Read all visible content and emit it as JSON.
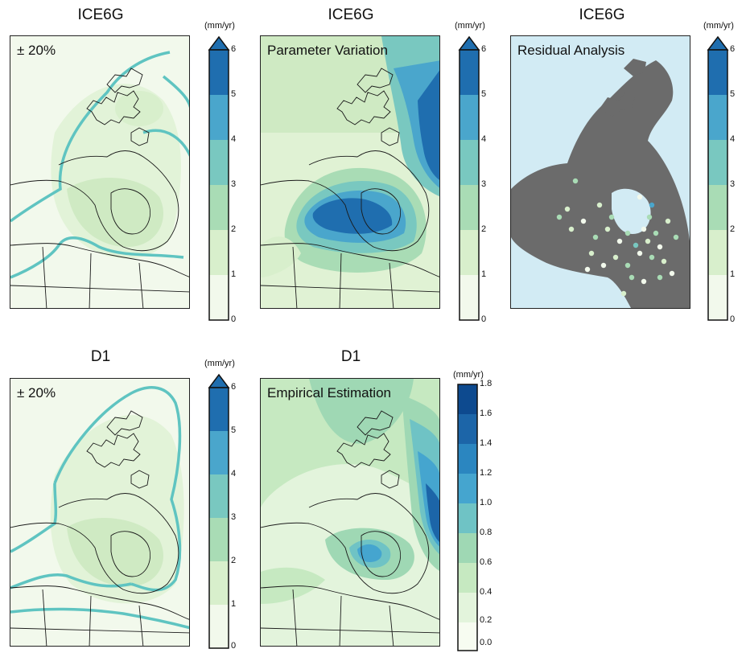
{
  "colors": {
    "ramp6": [
      "#f2f9ec",
      "#d8efcc",
      "#a9dcb5",
      "#79c8c0",
      "#4aa6cc",
      "#1f6eaf"
    ],
    "ramp9": [
      "#f7fcf1",
      "#e3f4dc",
      "#c6e9c1",
      "#9fd8b4",
      "#6fc3c5",
      "#45a5cf",
      "#2b86c0",
      "#1c65a8",
      "#0d4a8f"
    ],
    "contour": "#5fc4c1",
    "land_grey": "#6b6b6b",
    "ocean_blue": "#d2ebf4"
  },
  "panels": [
    {
      "title": "ICE6G",
      "label": "± 20%",
      "colorbar": {
        "unit": "(mm/yr)",
        "ticks": [
          "0",
          "1",
          "2",
          "3",
          "4",
          "5",
          "6"
        ]
      }
    },
    {
      "title": "ICE6G",
      "label": "Parameter Variation",
      "colorbar": {
        "unit": "(mm/yr)",
        "ticks": [
          "0",
          "1",
          "2",
          "3",
          "4",
          "5",
          "6"
        ]
      }
    },
    {
      "title": "ICE6G",
      "label": "Residual Analysis",
      "colorbar": {
        "unit": "(mm/yr)",
        "ticks": [
          "0",
          "1",
          "2",
          "3",
          "4",
          "5",
          "6"
        ]
      }
    },
    {
      "title": "D1",
      "label": "± 20%",
      "colorbar": {
        "unit": "(mm/yr)",
        "ticks": [
          "0",
          "1",
          "2",
          "3",
          "4",
          "5",
          "6"
        ]
      }
    },
    {
      "title": "D1",
      "label": "Empirical Estimation",
      "colorbar": {
        "unit": "(mm/yr)",
        "ticks": [
          "0.0",
          "0.2",
          "0.4",
          "0.6",
          "0.8",
          "1.0",
          "1.2",
          "1.4",
          "1.6",
          "1.8"
        ]
      }
    }
  ]
}
